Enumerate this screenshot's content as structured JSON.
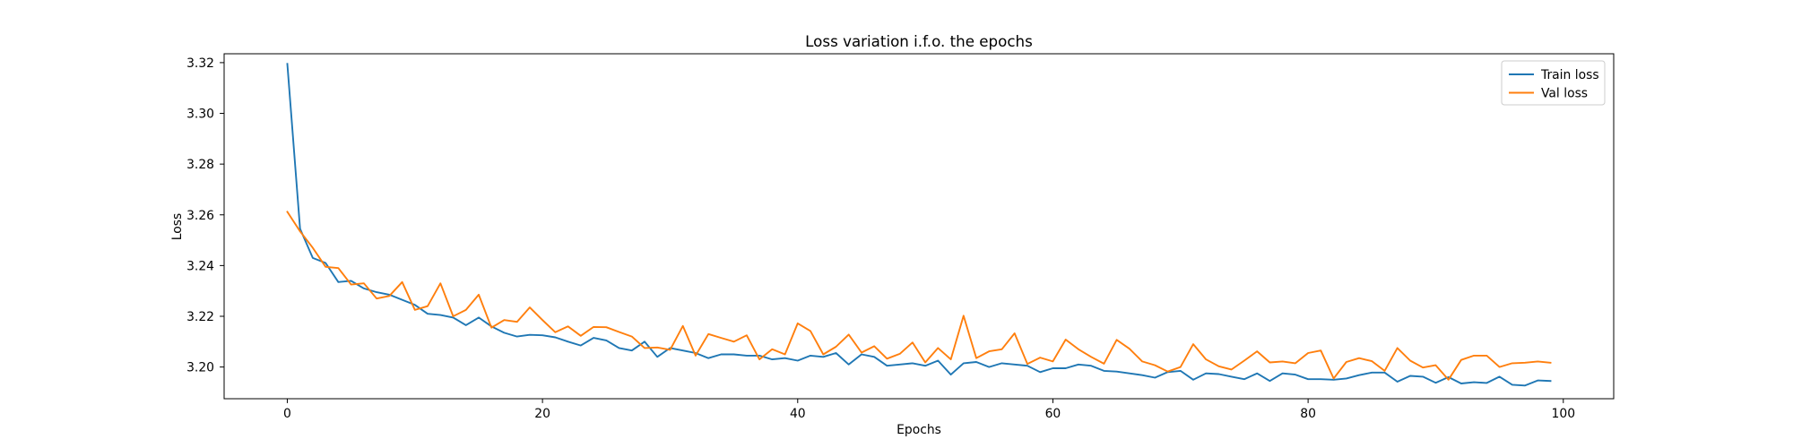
{
  "chart_data": {
    "type": "line",
    "title": "Loss variation i.f.o. the epochs",
    "xlabel": "Epochs",
    "ylabel": "Loss",
    "xlim": [
      -4.95,
      103.95
    ],
    "ylim": [
      3.1875,
      3.3235
    ],
    "xticks": [
      0,
      20,
      40,
      60,
      80,
      100
    ],
    "yticks": [
      3.2,
      3.22,
      3.24,
      3.26,
      3.28,
      3.3,
      3.32
    ],
    "grid": false,
    "legend_position": "top-right",
    "x": [
      0,
      1,
      2,
      3,
      4,
      5,
      6,
      7,
      8,
      9,
      10,
      11,
      12,
      13,
      14,
      15,
      16,
      17,
      18,
      19,
      20,
      21,
      22,
      23,
      24,
      25,
      26,
      27,
      28,
      29,
      30,
      31,
      32,
      33,
      34,
      35,
      36,
      37,
      38,
      39,
      40,
      41,
      42,
      43,
      44,
      45,
      46,
      47,
      48,
      49,
      50,
      51,
      52,
      53,
      54,
      55,
      56,
      57,
      58,
      59,
      60,
      61,
      62,
      63,
      64,
      65,
      66,
      67,
      68,
      69,
      70,
      71,
      72,
      73,
      74,
      75,
      76,
      77,
      78,
      79,
      80,
      81,
      82,
      83,
      84,
      85,
      86,
      87,
      88,
      89,
      90,
      91,
      92,
      93,
      94,
      95,
      96,
      97,
      98,
      99
    ],
    "series": [
      {
        "name": "Train loss",
        "color": "#1f77b4",
        "values": [
          3.3195,
          3.2545,
          3.243,
          3.241,
          3.2335,
          3.234,
          3.231,
          3.2295,
          3.2285,
          3.2265,
          3.2245,
          3.221,
          3.2205,
          3.2195,
          3.2165,
          3.2195,
          3.216,
          3.2135,
          3.212,
          3.2127,
          3.2125,
          3.2117,
          3.21,
          3.2085,
          3.2115,
          3.2105,
          3.2075,
          3.2065,
          3.21,
          3.204,
          3.2075,
          3.2065,
          3.2055,
          3.2035,
          3.205,
          3.205,
          3.2045,
          3.2045,
          3.203,
          3.2035,
          3.2025,
          3.2045,
          3.204,
          3.2055,
          3.201,
          3.205,
          3.204,
          3.2005,
          3.201,
          3.2015,
          3.2005,
          3.2025,
          3.197,
          3.2015,
          3.202,
          3.2,
          3.2015,
          3.201,
          3.2005,
          3.198,
          3.1995,
          3.1995,
          3.201,
          3.2005,
          3.1985,
          3.1982,
          3.1975,
          3.1968,
          3.1958,
          3.198,
          3.1985,
          3.195,
          3.1975,
          3.1972,
          3.1962,
          3.1952,
          3.1975,
          3.1945,
          3.1975,
          3.197,
          3.1952,
          3.1952,
          3.195,
          3.1955,
          3.1968,
          3.1978,
          3.1978,
          3.1942,
          3.1965,
          3.1962,
          3.1938,
          3.196,
          3.1935,
          3.194,
          3.1937,
          3.1962,
          3.193,
          3.1927,
          3.1947,
          3.1945
        ]
      },
      {
        "name": "Val loss",
        "color": "#ff7f0e",
        "values": [
          3.2612,
          3.2535,
          3.247,
          3.2395,
          3.239,
          3.2325,
          3.233,
          3.227,
          3.228,
          3.2335,
          3.2225,
          3.224,
          3.233,
          3.22,
          3.2225,
          3.2285,
          3.2155,
          3.2185,
          3.2178,
          3.2235,
          3.2185,
          3.2137,
          3.216,
          3.2123,
          3.2158,
          3.2157,
          3.2138,
          3.212,
          3.2075,
          3.2077,
          3.2068,
          3.2162,
          3.2045,
          3.213,
          3.2115,
          3.21,
          3.2125,
          3.203,
          3.207,
          3.205,
          3.2172,
          3.2142,
          3.205,
          3.208,
          3.2128,
          3.2057,
          3.2082,
          3.2033,
          3.2052,
          3.2097,
          3.2018,
          3.2075,
          3.203,
          3.2202,
          3.2035,
          3.2062,
          3.207,
          3.2133,
          3.2012,
          3.2037,
          3.2022,
          3.2108,
          3.207,
          3.204,
          3.2013,
          3.2107,
          3.2072,
          3.2022,
          3.2007,
          3.1982,
          3.2,
          3.209,
          3.203,
          3.2003,
          3.199,
          3.2025,
          3.2062,
          3.2018,
          3.2022,
          3.2015,
          3.2055,
          3.2065,
          3.1955,
          3.202,
          3.2035,
          3.2023,
          3.1985,
          3.2075,
          3.2025,
          3.1998,
          3.2007,
          3.195,
          3.2028,
          3.2045,
          3.2045,
          3.2,
          3.2015,
          3.2017,
          3.2022,
          3.2017
        ]
      }
    ]
  }
}
